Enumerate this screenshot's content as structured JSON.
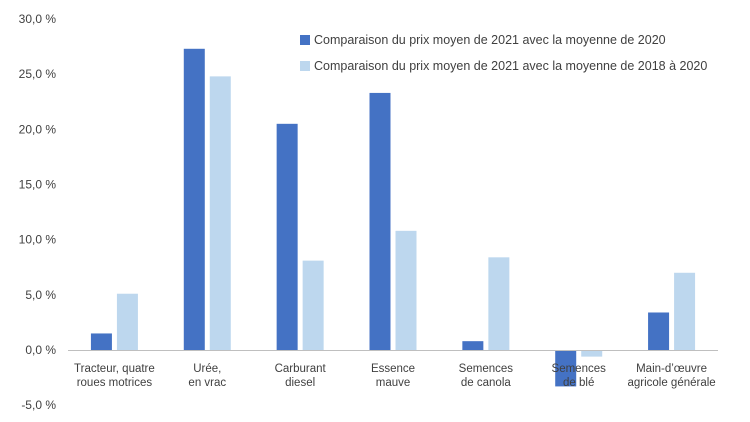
{
  "chart_data": {
    "type": "bar",
    "title": "",
    "xlabel": "",
    "ylabel": "",
    "ylim": [
      -5,
      30
    ],
    "y_ticks": [
      "30,0 %",
      "25,0 %",
      "20,0 %",
      "15,0 %",
      "10,0 %",
      "5,0 %",
      "0,0 %",
      "-5,0 %"
    ],
    "y_tick_values": [
      30,
      25,
      20,
      15,
      10,
      5,
      0,
      -5
    ],
    "grid": false,
    "legend_position": "top-right",
    "categories": [
      [
        "Tracteur, quatre",
        "roues motrices"
      ],
      [
        "Urée,",
        "en vrac"
      ],
      [
        "Carburant",
        "diesel"
      ],
      [
        "Essence",
        "mauve"
      ],
      [
        "Semences",
        "de canola"
      ],
      [
        "Semences",
        "de blé"
      ],
      [
        "Main-d’œuvre",
        "agricole générale"
      ]
    ],
    "series": [
      {
        "name": "Comparaison du prix moyen de 2021 avec la moyenne de 2020",
        "color": "#4472c4",
        "values": [
          1.5,
          27.3,
          20.5,
          23.3,
          0.8,
          -3.3,
          3.4
        ]
      },
      {
        "name": "Comparaison du prix moyen de 2021 avec la moyenne de 2018 à 2020",
        "color": "#bdd7ee",
        "values": [
          5.1,
          24.8,
          8.1,
          10.8,
          8.4,
          -0.6,
          7.0
        ]
      }
    ]
  }
}
